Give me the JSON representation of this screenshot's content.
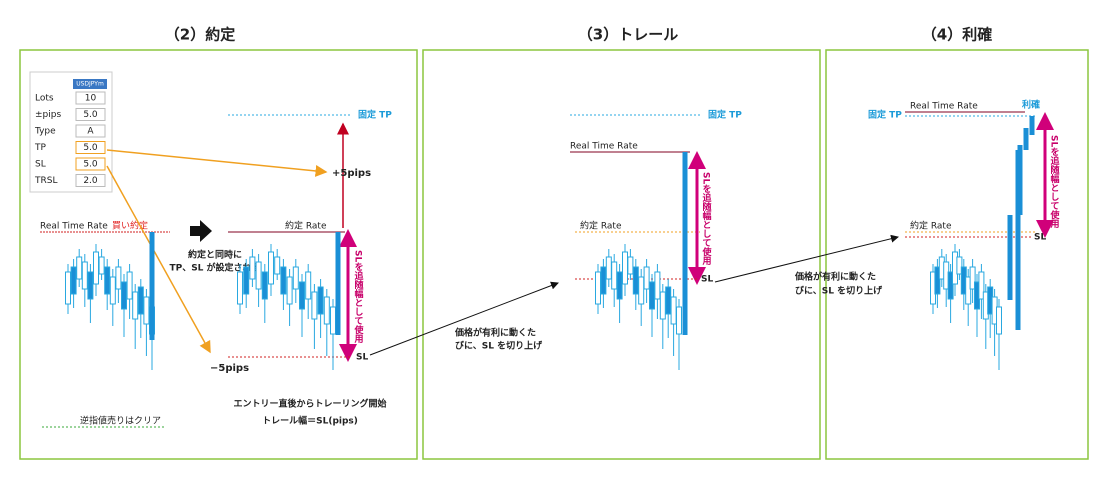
{
  "panels": [
    {
      "title": "（2）約定",
      "settings": {
        "symbol": "USDJPYm",
        "rows": [
          [
            "Lots",
            "10"
          ],
          [
            "±pips",
            "5.0"
          ],
          [
            "Type",
            "A"
          ],
          [
            "TP",
            "5.0"
          ],
          [
            "SL",
            "5.0"
          ],
          [
            "TRSL",
            "2.0"
          ]
        ]
      },
      "real_time_rate": "Real Time Rate",
      "buy_fill": "買い約定",
      "notice": [
        "約定と同時に",
        "TP、SL が設定される"
      ],
      "fixed_tp": "固定 TP",
      "fill_rate": "約定 Rate",
      "plus_pips": "+5pips",
      "minus_pips": "−5pips",
      "sl_usage": "SLを追随幅として使用",
      "sl": "SL",
      "stop_sell_cleared": "逆指値売りはクリア",
      "trailing_note": [
        "エントリー直後からトレーリング開始",
        "トレール幅＝SL(pips)"
      ]
    },
    {
      "title": "（3）トレール",
      "fixed_tp": "固定 TP",
      "real_time_rate": "Real Time Rate",
      "fill_rate": "約定 Rate",
      "sl_usage": "SLを追随幅として使用",
      "sl": "SL",
      "arrow_note": [
        "価格が有利に動くた",
        "びに、SL を切り上げ"
      ]
    },
    {
      "title": "（4）利確",
      "fixed_tp": "固定 TP",
      "real_time_rate": "Real Time Rate",
      "take_profit": "利確",
      "fill_rate": "約定 Rate",
      "sl_usage": "SLを追随幅として使用",
      "sl": "SL",
      "arrow_note": [
        "価格が有利に動くた",
        "びに、SL を切り上げ"
      ]
    }
  ]
}
